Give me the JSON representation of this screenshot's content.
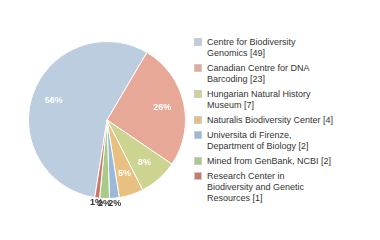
{
  "chart_data": {
    "type": "pie",
    "categories": [
      "Centre for Biodiversity\nGenomics [49]",
      "Canadian Centre for DNA\nBarcoding [23]",
      "Hungarian Natural History\nMuseum [7]",
      "Naturalis Biodiversity Center [4]",
      "Universita di Firenze,\nDepartment of Biology [2]",
      "Mined from GenBank, NCBI [2]",
      "Research Center in\nBiodiversity and Genetic\nResources [1]"
    ],
    "values": [
      56,
      26,
      8,
      5,
      2,
      2,
      1
    ],
    "value_labels": [
      "56%",
      "26%",
      "8%",
      "5%",
      "2%",
      "2%",
      "1%"
    ],
    "colors": [
      "#bccde0",
      "#e8a898",
      "#cdd490",
      "#e8c080",
      "#9ab8d8",
      "#a8cc88",
      "#cc7868"
    ],
    "data_labels": true,
    "legend": "right"
  }
}
